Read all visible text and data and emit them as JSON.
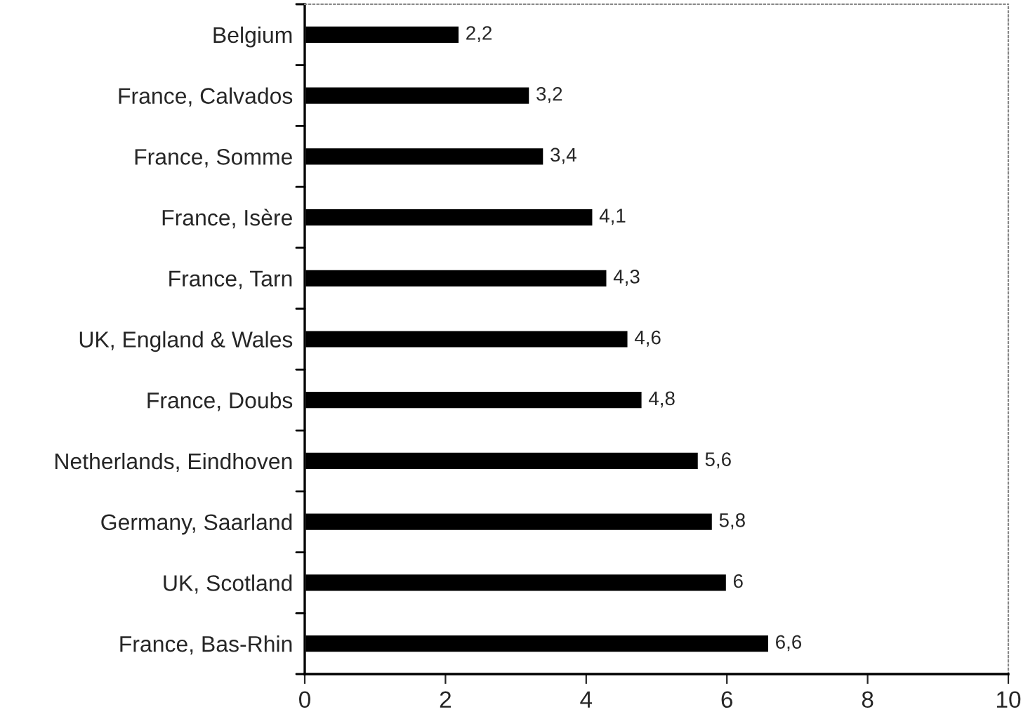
{
  "chart_data": {
    "type": "bar",
    "orientation": "horizontal",
    "categories": [
      "Belgium",
      "France, Calvados",
      "France, Somme",
      "France, Isère",
      "France, Tarn",
      "UK, England & Wales",
      "France, Doubs",
      "Netherlands, Eindhoven",
      "Germany, Saarland",
      "UK, Scotland",
      "France, Bas-Rhin"
    ],
    "values": [
      2.2,
      3.2,
      3.4,
      4.1,
      4.3,
      4.6,
      4.8,
      5.6,
      5.8,
      6,
      6.6
    ],
    "value_labels": [
      "2,2",
      "3,2",
      "3,4",
      "4,1",
      "4,3",
      "4,6",
      "4,8",
      "5,6",
      "5,8",
      "6",
      "6,6"
    ],
    "color": "#000000",
    "xlim": [
      0,
      10
    ],
    "xticks": [
      0,
      2,
      4,
      6,
      8,
      10
    ],
    "grid": false
  }
}
